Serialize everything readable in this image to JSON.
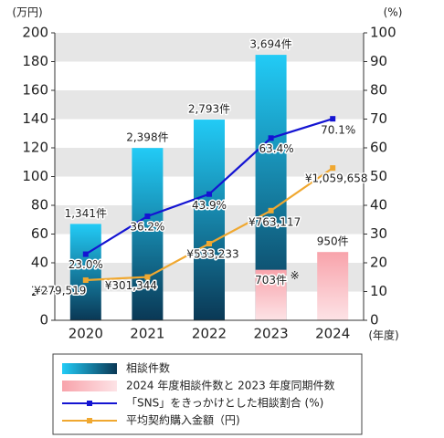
{
  "chart_data": {
    "type": "bar_line",
    "ylabel": "(万円)",
    "y2label": "(%)",
    "xlabel": "(年度)",
    "categories": [
      "2020",
      "2021",
      "2022",
      "2023",
      "2024"
    ],
    "ylim": [
      0,
      200
    ],
    "yticks": [
      0,
      20,
      40,
      60,
      80,
      100,
      120,
      140,
      160,
      180,
      200
    ],
    "y2lim": [
      0,
      100
    ],
    "y2ticks": [
      0,
      10,
      20,
      30,
      40,
      50,
      60,
      70,
      80,
      90,
      100
    ],
    "y3lim": [
      0,
      4000
    ],
    "grid": "bands",
    "series": [
      {
        "name": "相談件数",
        "type": "bar",
        "axis": "y3",
        "color": [
          "#22cbf6",
          "#0a3855"
        ],
        "values": [
          1341,
          2398,
          2793,
          3694,
          null
        ],
        "value_labels": [
          "1,341件",
          "2,398件",
          "2,793件",
          "3,694件",
          null
        ]
      },
      {
        "name": "2024 年度相談件数と 2023 年度同期件数",
        "type": "bar",
        "axis": "y3",
        "color": [
          "#f8a3ab",
          "#fde3e6"
        ],
        "values": [
          null,
          null,
          null,
          703,
          950
        ],
        "value_labels": [
          null,
          null,
          null,
          "703件",
          "950件"
        ],
        "annotations": [
          null,
          null,
          null,
          "※",
          null
        ]
      },
      {
        "name": "「SNS」をきっかけとした相談割合 (%)",
        "type": "line",
        "axis": "y2",
        "color": "#1414d2",
        "values": [
          23.0,
          36.2,
          43.9,
          63.4,
          70.1
        ],
        "value_labels": [
          "23.0%",
          "36.2%",
          "43.9%",
          "63.4%",
          "70.1%"
        ]
      },
      {
        "name": "平均契約購入金額（円)",
        "type": "line",
        "axis": "y",
        "color": "#f0a830",
        "values": [
          27.9519,
          30.1344,
          53.3233,
          76.3117,
          105.9658
        ],
        "value_labels": [
          "¥279,519",
          "¥301,344",
          "¥533,233",
          "¥763,117",
          "¥1,059,658"
        ]
      }
    ]
  }
}
